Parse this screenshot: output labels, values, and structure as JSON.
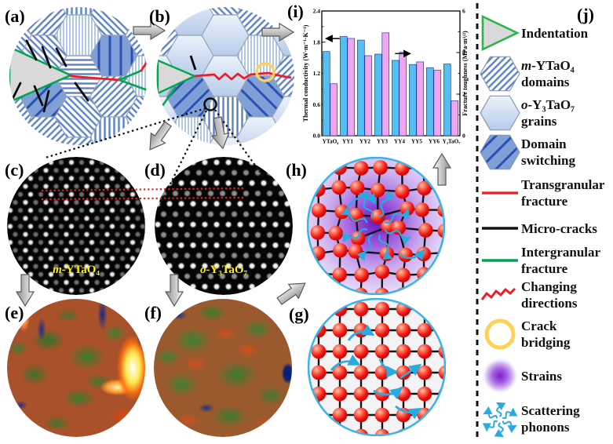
{
  "panel_labels": {
    "a": "(a)",
    "b": "(b)",
    "c": "(c)",
    "d": "(d)",
    "e": "(e)",
    "f": "(f)",
    "g": "(g)",
    "h": "(h)",
    "i": "(i)",
    "j": "(j)"
  },
  "micrograph_labels": {
    "c_prefix": "m-",
    "c_formula": "YTaO₄",
    "d_prefix": "o-",
    "d_formula": "Y₃TaO₇"
  },
  "chart_data": {
    "type": "bar",
    "categories": [
      "YTaO₄",
      "YY1",
      "YY2",
      "YY3",
      "YY4",
      "YY5",
      "YY6",
      "Y₃TaO₇"
    ],
    "series": [
      {
        "name": "Thermal conductivity",
        "axis": "left",
        "color": "#55bff2",
        "values": [
          1.62,
          1.91,
          1.84,
          1.57,
          1.45,
          1.37,
          1.31,
          1.38
        ]
      },
      {
        "name": "Fracture toughness",
        "axis": "right",
        "color": "#efa6ef",
        "values": [
          2.5,
          4.68,
          3.85,
          4.95,
          4.02,
          3.55,
          3.15,
          1.68
        ]
      }
    ],
    "ylabel_left": "Thermal conductivity (W·m⁻¹·K⁻¹)",
    "ylabel_right": "Fracture toughness (MPa·m¹/²)",
    "yticks_left": [
      "0.0",
      "0.6",
      "1.2",
      "1.8",
      "2.4"
    ],
    "yticks_right": [
      "0",
      "2",
      "4",
      "6"
    ],
    "ylim_left": [
      0,
      2.4
    ],
    "ylim_right": [
      0,
      6
    ],
    "grid": false,
    "annotations": [
      {
        "dir": "left",
        "axis": "left",
        "value": 1.87,
        "x1_frac": 0.13,
        "x2_frac": 0.03
      },
      {
        "dir": "right",
        "axis": "right",
        "value": 3.95,
        "x1_frac": 0.53,
        "x2_frac": 0.64
      }
    ]
  },
  "legend": {
    "items": [
      {
        "symbol": "indentation-triangle",
        "line1": "Indentation"
      },
      {
        "symbol": "hexagon-hatched",
        "line1_italic": "m-",
        "line1": "YTaO₄",
        "line2": "domains"
      },
      {
        "symbol": "hexagon-plain",
        "line1_italic": "o-",
        "line1": "Y₃TaO₇",
        "line2": "grains"
      },
      {
        "symbol": "hexagon-switching",
        "line1": "Domain",
        "line2": "switching"
      },
      {
        "symbol": "red-line",
        "line1": "Transgranular",
        "line2": "fracture"
      },
      {
        "symbol": "black-line",
        "line1": "Micro-cracks"
      },
      {
        "symbol": "green-line",
        "line1": "Intergranular",
        "line2": "fracture"
      },
      {
        "symbol": "red-zigzag",
        "line1": "Changing",
        "line2": "directions"
      },
      {
        "symbol": "yellow-circle",
        "line1": "Crack",
        "line2": "bridging"
      },
      {
        "symbol": "purple-blob",
        "line1": "Strains"
      },
      {
        "symbol": "cyan-squiggles",
        "line1": "Scattering",
        "line2": "phonons"
      }
    ]
  },
  "colors": {
    "bar_blue": "#55bff2",
    "bar_pink": "#efa6ef",
    "transgranular_red": "#ee1c23",
    "intergranular_green": "#00a650",
    "micro_crack_black": "#111111",
    "crack_bridging_yellow": "#ffd158",
    "strain_purple": "#7a1fd0",
    "phonon_cyan": "#29abe2",
    "micrograph_label_yellow": "#ffef00",
    "hex_stripe_blue": "#5b82c8",
    "hex_fill_blue": "#7f9fd7"
  }
}
